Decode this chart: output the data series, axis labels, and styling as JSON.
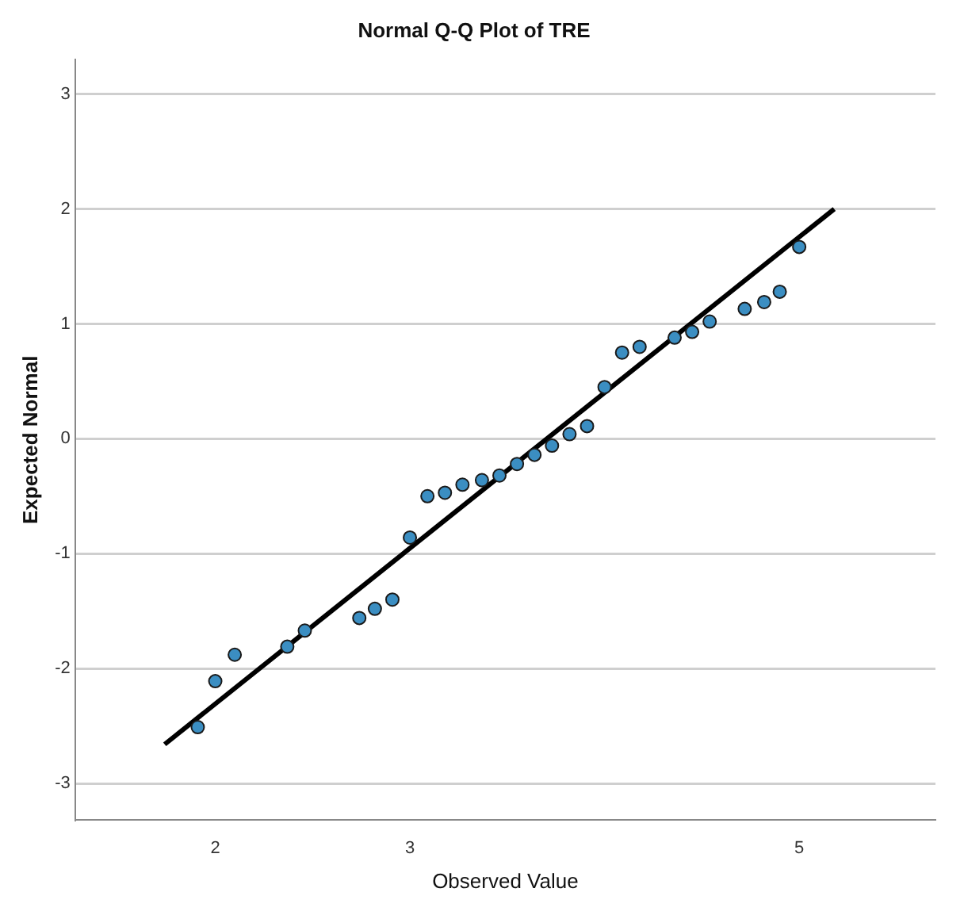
{
  "chart_data": {
    "type": "scatter",
    "title": "Normal Q-Q Plot of TRE",
    "xlabel": "Observed Value",
    "ylabel": "Expected Normal",
    "xlim": [
      1.28,
      5.7
    ],
    "xticks": [
      2,
      3,
      5
    ],
    "ylim": [
      -3.32,
      3.3
    ],
    "yticks": [
      -3,
      -2,
      -1,
      0,
      1,
      2,
      3
    ],
    "grid": "y",
    "legend": false,
    "series": [
      {
        "color": "#3b8ec2",
        "marker": "circle",
        "x": [
          1.91,
          2.0,
          2.1,
          2.37,
          2.46,
          2.74,
          2.82,
          2.91,
          3.0,
          3.09,
          3.18,
          3.27,
          3.37,
          3.46,
          3.55,
          3.64,
          3.73,
          3.82,
          3.91,
          4.0,
          4.09,
          4.18,
          4.36,
          4.45,
          4.54,
          4.72,
          4.82,
          4.9,
          5.0
        ],
        "values": [
          -2.51,
          -2.11,
          -1.88,
          -1.81,
          -1.67,
          -1.56,
          -1.48,
          -1.4,
          -0.86,
          -0.5,
          -0.47,
          -0.4,
          -0.36,
          -0.32,
          -0.22,
          -0.14,
          -0.06,
          0.04,
          0.11,
          0.45,
          0.75,
          0.8,
          0.88,
          0.93,
          1.02,
          1.13,
          1.19,
          1.28,
          1.67
        ]
      },
      {
        "type": "line",
        "color": "#000000",
        "marker": "none",
        "x": [
          1.74,
          5.18
        ],
        "values": [
          -2.66,
          2.0
        ]
      }
    ]
  }
}
